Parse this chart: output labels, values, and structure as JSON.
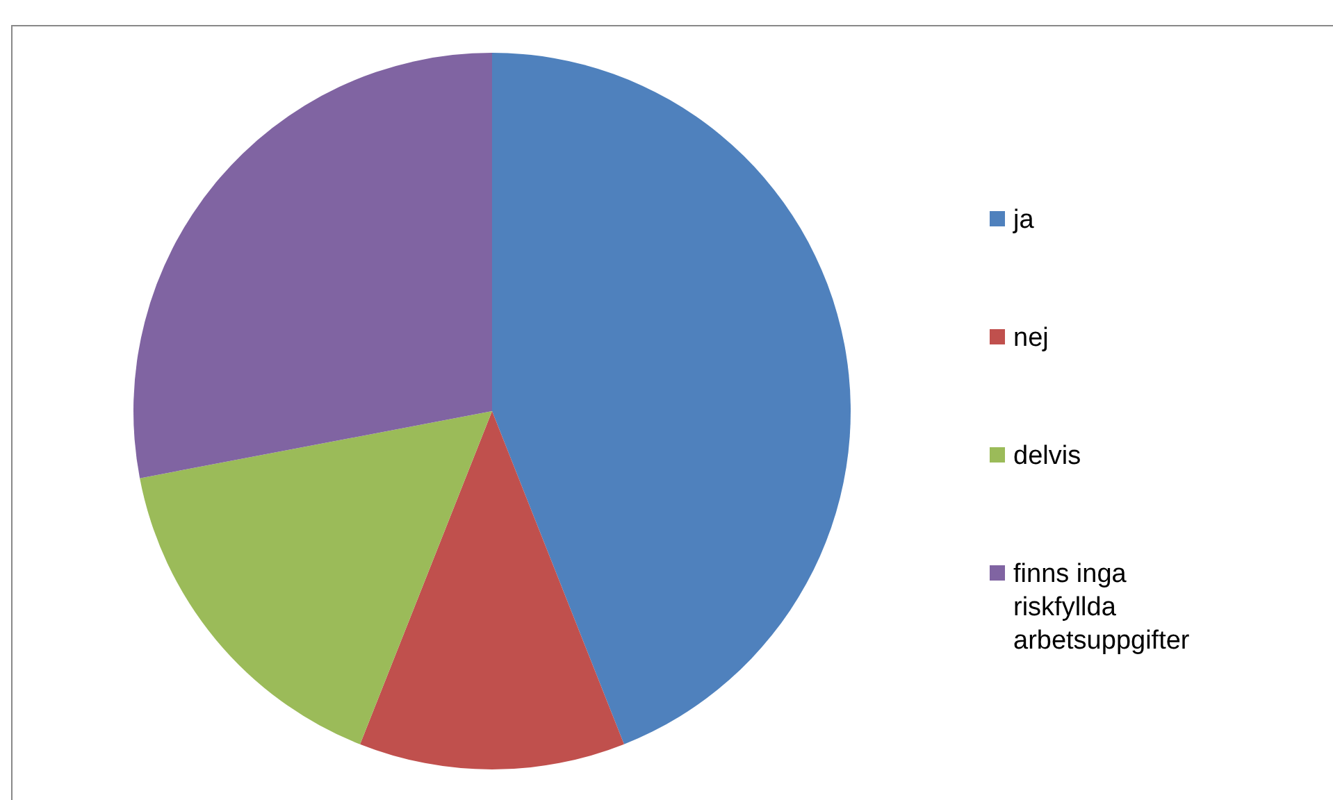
{
  "chart_data": {
    "type": "pie",
    "categories": [
      "ja",
      "nej",
      "delvis",
      "finns inga riskfyllda arbetsuppgifter"
    ],
    "values": [
      44,
      12,
      16,
      28
    ],
    "colors": [
      "#4f81bd",
      "#c0504d",
      "#9bbb59",
      "#8064a2"
    ],
    "legend": "right"
  }
}
